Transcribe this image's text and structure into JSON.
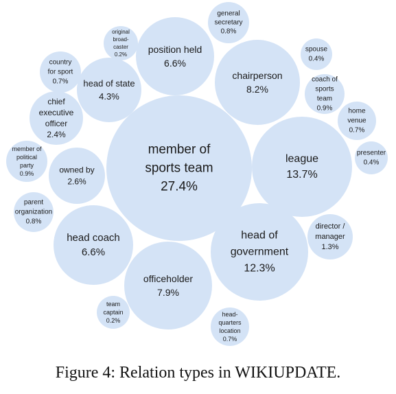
{
  "chart_data": {
    "type": "bubble",
    "color": "#d4e3f6",
    "items": [
      {
        "label": [
          "member of",
          "sports team"
        ],
        "value": "27.4%"
      },
      {
        "label": [
          "league"
        ],
        "value": "13.7%"
      },
      {
        "label": [
          "head of",
          "government"
        ],
        "value": "12.3%"
      },
      {
        "label": [
          "chairperson"
        ],
        "value": "8.2%"
      },
      {
        "label": [
          "officeholder"
        ],
        "value": "7.9%"
      },
      {
        "label": [
          "position held"
        ],
        "value": "6.6%"
      },
      {
        "label": [
          "head coach"
        ],
        "value": "6.6%"
      },
      {
        "label": [
          "head of state"
        ],
        "value": "4.3%"
      },
      {
        "label": [
          "owned by"
        ],
        "value": "2.6%"
      },
      {
        "label": [
          "chief",
          "executive",
          "officer"
        ],
        "value": "2.4%"
      },
      {
        "label": [
          "director /",
          "manager"
        ],
        "value": "1.3%"
      },
      {
        "label": [
          "coach of",
          "sports",
          "team"
        ],
        "value": "0.9%"
      },
      {
        "label": [
          "member of",
          "political",
          "party"
        ],
        "value": "0.9%"
      },
      {
        "label": [
          "general",
          "secretary"
        ],
        "value": "0.8%"
      },
      {
        "label": [
          "parent",
          "organization"
        ],
        "value": "0.8%"
      },
      {
        "label": [
          "country",
          "for sport"
        ],
        "value": "0.7%"
      },
      {
        "label": [
          "home",
          "venue"
        ],
        "value": "0.7%"
      },
      {
        "label": [
          "head-",
          "quarters",
          "location"
        ],
        "value": "0.7%"
      },
      {
        "label": [
          "spouse"
        ],
        "value": "0.4%"
      },
      {
        "label": [
          "presenter"
        ],
        "value": "0.4%"
      },
      {
        "label": [
          "original",
          "broad-",
          "caster"
        ],
        "value": "0.2%"
      },
      {
        "label": [
          "team",
          "captain"
        ],
        "value": "0.2%"
      }
    ]
  },
  "caption": {
    "prefix": "Figure 4: Relation types in ",
    "name_w": "W",
    "name_iki": "IKI",
    "name_u": "U",
    "name_pdate": "PDATE",
    "suffix": "."
  }
}
